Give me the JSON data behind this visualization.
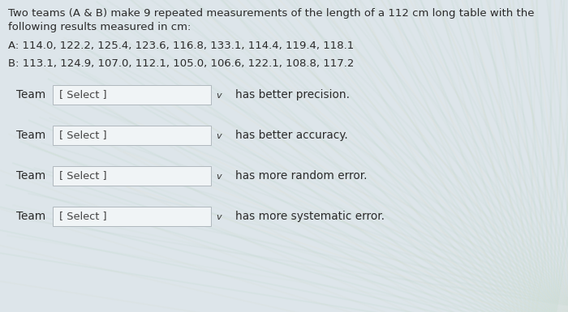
{
  "title_line1": "Two teams (A & B) make 9 repeated measurements of the length of a 112 cm long table with the",
  "title_line2": "following results measured in cm:",
  "team_a_label": "A: 114.0, 122.2, 125.4, 123.6, 116.8, 133.1, 114.4, 119.4, 118.1",
  "team_b_label": "B: 113.1, 124.9, 107.0, 112.1, 105.0, 106.6, 122.1, 108.8, 117.2",
  "rows": [
    {
      "prefix": "Team",
      "select_text": "[ Select ]",
      "suffix": "has better precision."
    },
    {
      "prefix": "Team",
      "select_text": "[ Select ]",
      "suffix": "has better accuracy."
    },
    {
      "prefix": "Team",
      "select_text": "[ Select ]",
      "suffix": "has more random error."
    },
    {
      "prefix": "Team",
      "select_text": "[ Select ]",
      "suffix": "has more systematic error."
    }
  ],
  "bg_color": "#dde5ea",
  "box_color": "#f0f4f6",
  "text_color": "#2a2a2a",
  "box_border_color": "#b0b8be",
  "font_size_body": 9.5,
  "font_size_row": 9.8
}
